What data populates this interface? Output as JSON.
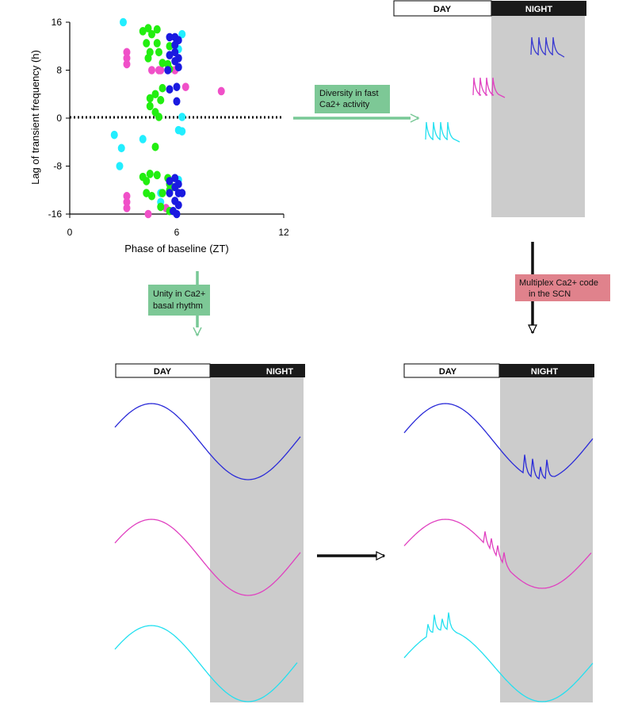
{
  "colors": {
    "magenta": "#f050c8",
    "green": "#22ee10",
    "blue": "#1a1ae0",
    "cyan": "#22eeff",
    "night_shade": "#cccccc",
    "night_bar": "#1a1a1a",
    "arrow_green": "#78c896",
    "box_green": "#7dc896",
    "box_red": "#e0828c"
  },
  "labels": {
    "day": "DAY",
    "night": "NIGHT",
    "diversity_line1": "Diversity in fast",
    "diversity_line2": "Ca2+ activity",
    "unity_line1": "Unity in Ca2+",
    "unity_line2": "basal rhythm",
    "multiplex_line1": "Multiplex Ca2+ code",
    "multiplex_line2": "in the SCN"
  },
  "chart_data": {
    "type": "scatter",
    "xlabel": "Phase of baseline (ZT)",
    "ylabel": "Lag of transient frequency (h)",
    "xlim": [
      0,
      12
    ],
    "ylim": [
      -16,
      16
    ],
    "xticks": [
      "0",
      "6",
      "12"
    ],
    "yticks": [
      "16",
      "8",
      "0",
      "-8",
      "-16"
    ],
    "reference_line_y": 0,
    "series": [
      {
        "color": "cyan",
        "points": [
          [
            3.0,
            16
          ],
          [
            6.3,
            14
          ],
          [
            6.1,
            11.5
          ],
          [
            6.3,
            0.2
          ],
          [
            6.1,
            -2
          ],
          [
            6.3,
            -2.2
          ],
          [
            2.5,
            -2.8
          ],
          [
            4.1,
            -3.5
          ],
          [
            2.9,
            -5
          ],
          [
            2.8,
            -8
          ],
          [
            6.1,
            -10.3
          ],
          [
            5.1,
            -12.5
          ],
          [
            5.1,
            -14
          ]
        ]
      },
      {
        "color": "magenta",
        "points": [
          [
            3.2,
            11
          ],
          [
            3.2,
            10
          ],
          [
            3.2,
            9
          ],
          [
            5.1,
            8
          ],
          [
            5.9,
            8
          ],
          [
            4.6,
            8
          ],
          [
            5.0,
            8
          ],
          [
            6.5,
            5.2
          ],
          [
            8.5,
            4.5
          ],
          [
            3.2,
            -13
          ],
          [
            3.2,
            -14
          ],
          [
            3.2,
            -15
          ],
          [
            5.4,
            -15
          ],
          [
            4.4,
            -16
          ]
        ]
      },
      {
        "color": "green",
        "points": [
          [
            4.1,
            14.5
          ],
          [
            4.4,
            15
          ],
          [
            4.9,
            14.8
          ],
          [
            4.6,
            14
          ],
          [
            4.3,
            12.5
          ],
          [
            4.9,
            12.5
          ],
          [
            5.6,
            12
          ],
          [
            4.5,
            11
          ],
          [
            4.4,
            10
          ],
          [
            5.0,
            11
          ],
          [
            5.2,
            9.2
          ],
          [
            5.5,
            9
          ],
          [
            5.6,
            8.2
          ],
          [
            5.2,
            5
          ],
          [
            4.8,
            4
          ],
          [
            5.1,
            3
          ],
          [
            4.5,
            3.3
          ],
          [
            4.5,
            2
          ],
          [
            4.8,
            1
          ],
          [
            5.0,
            0.2
          ],
          [
            4.8,
            -4.8
          ],
          [
            4.1,
            -9.8
          ],
          [
            4.5,
            -9.3
          ],
          [
            4.9,
            -9.5
          ],
          [
            4.3,
            -10.5
          ],
          [
            5.5,
            -10
          ],
          [
            5.6,
            -11
          ],
          [
            5.2,
            -12.5
          ],
          [
            5.6,
            -12
          ],
          [
            4.3,
            -12.5
          ],
          [
            4.6,
            -13
          ],
          [
            5.1,
            -14.8
          ],
          [
            5.6,
            -15.5
          ]
        ]
      },
      {
        "color": "blue",
        "points": [
          [
            5.6,
            13.5
          ],
          [
            5.9,
            13.5
          ],
          [
            6.1,
            13
          ],
          [
            5.9,
            12.2
          ],
          [
            5.9,
            11
          ],
          [
            5.6,
            10.5
          ],
          [
            6.1,
            10
          ],
          [
            5.9,
            9.5
          ],
          [
            6.1,
            8.5
          ],
          [
            5.5,
            8
          ],
          [
            6.0,
            5.2
          ],
          [
            5.6,
            4.8
          ],
          [
            6.0,
            2.8
          ],
          [
            5.6,
            -10.5
          ],
          [
            5.9,
            -10
          ],
          [
            5.9,
            -11.5
          ],
          [
            6.1,
            -11
          ],
          [
            6.1,
            -12.5
          ],
          [
            5.6,
            -12.5
          ],
          [
            6.3,
            -12.5
          ],
          [
            5.9,
            -13.8
          ],
          [
            6.1,
            -14.5
          ],
          [
            5.8,
            -15.5
          ],
          [
            6.0,
            -16
          ]
        ]
      }
    ]
  },
  "panels": {
    "top_right": {
      "traces": [
        "blue",
        "magenta",
        "cyan"
      ]
    },
    "bottom_left": {
      "waves": [
        "blue",
        "magenta",
        "cyan"
      ]
    },
    "bottom_right": {
      "waves": [
        "blue",
        "magenta",
        "cyan"
      ]
    }
  }
}
